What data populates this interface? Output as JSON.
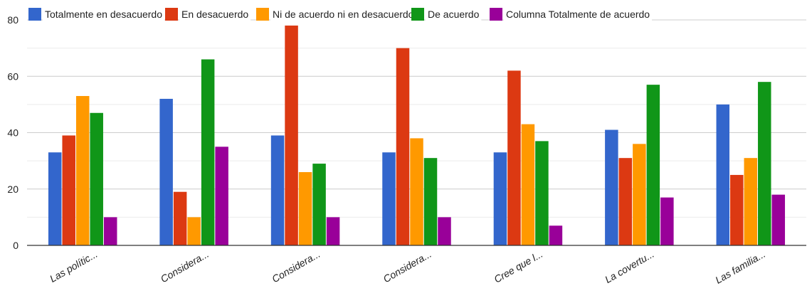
{
  "chart_data": {
    "type": "bar",
    "title": "",
    "xlabel": "",
    "ylabel": "",
    "ylim": [
      0,
      80
    ],
    "yticks": [
      0,
      20,
      40,
      60,
      80
    ],
    "grid": true,
    "legend_position": "top",
    "categories": [
      "Las polític...",
      "Considera...",
      "Considera...",
      "Considera...",
      "Cree que l...",
      "La covertu...",
      "Las familia..."
    ],
    "series": [
      {
        "name": "Totalmente en desacuerdo",
        "color": "#3366cc",
        "values": [
          33,
          52,
          39,
          33,
          33,
          41,
          50
        ]
      },
      {
        "name": "En desacuerdo",
        "color": "#dc3912",
        "values": [
          39,
          19,
          78,
          70,
          62,
          31,
          25
        ]
      },
      {
        "name": "Ni de acuerdo ni en desacuerdo",
        "color": "#ff9900",
        "values": [
          53,
          10,
          26,
          38,
          43,
          36,
          31
        ]
      },
      {
        "name": "De acuerdo",
        "color": "#109618",
        "values": [
          47,
          66,
          29,
          31,
          37,
          57,
          58
        ]
      },
      {
        "name": "Columna Totalmente de acuerdo",
        "color": "#990099",
        "values": [
          10,
          35,
          10,
          10,
          7,
          17,
          18
        ]
      }
    ]
  }
}
